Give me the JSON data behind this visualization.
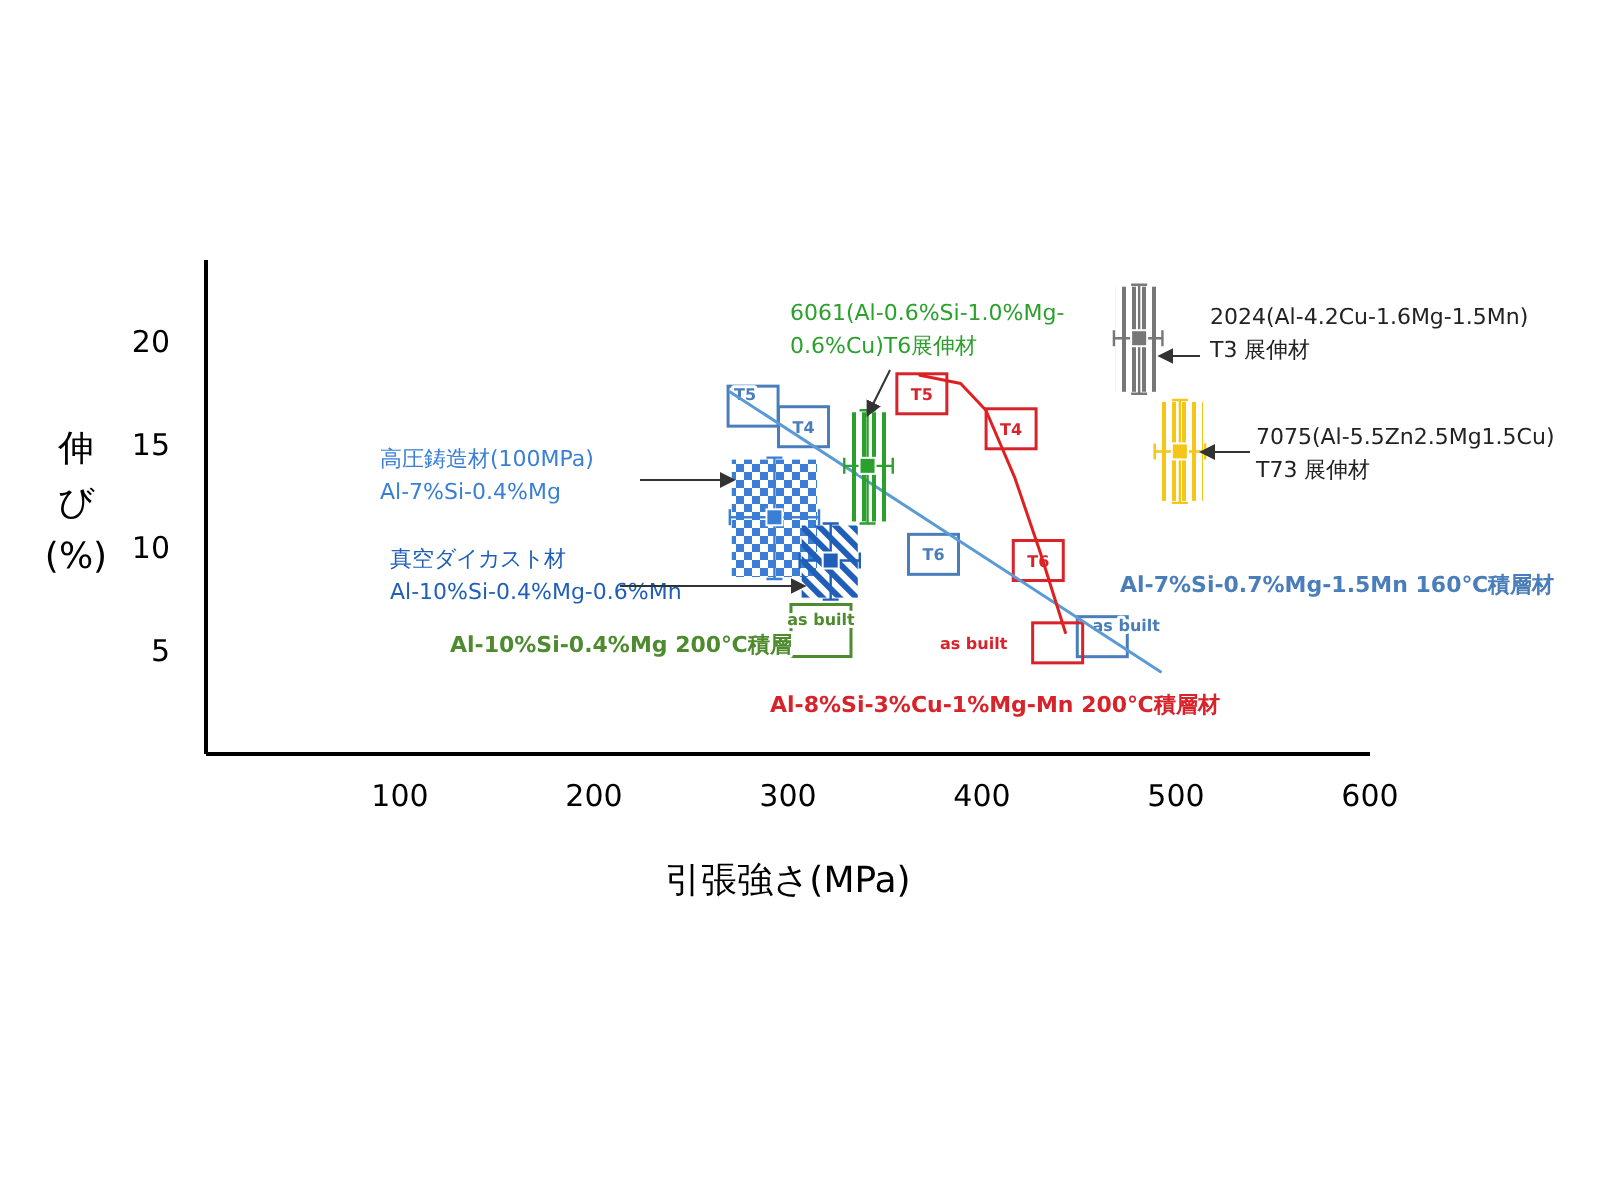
{
  "chart_data": {
    "type": "scatter",
    "xlabel": "引張強さ(MPa)",
    "ylabel": "伸び(%)",
    "xlim": [
      0,
      600
    ],
    "ylim": [
      0,
      24
    ],
    "xticks": [
      100,
      200,
      300,
      400,
      500,
      600
    ],
    "yticks": [
      5,
      10,
      15,
      20
    ],
    "grid": false,
    "legend": false,
    "marker": "square",
    "series": [
      {
        "name": "Al-7%Si-0.7%Mg-1.5Mn  160℃積層材",
        "color": "#4a7ebb",
        "x": [
          282,
          308,
          375,
          462
        ],
        "values": [
          16.9,
          15.9,
          9.7,
          5.7
        ],
        "value_labels": [
          "T5",
          "T4",
          "T6",
          "as built"
        ]
      },
      {
        "name": "Al-8%Si-3%Cu-1%Mg-Mn  200℃積層材",
        "color": "#d9232a",
        "x": [
          369,
          415,
          429,
          439
        ],
        "values": [
          17.5,
          15.8,
          9.4,
          5.4
        ],
        "value_labels": [
          "T5",
          "T4",
          "T6",
          "as built"
        ]
      },
      {
        "name": "Al-10%Si-0.4%Mg  200℃積層",
        "color": "#4e8a2e",
        "x": [
          317
        ],
        "values": [
          6.0
        ],
        "value_labels": [
          "as built"
        ]
      },
      {
        "color": "#5b9bd5",
        "type": "line",
        "marker": "none",
        "x": [
          270,
          492
        ],
        "values": [
          17.6,
          4.0
        ]
      },
      {
        "color": "#e02020",
        "type": "line",
        "marker": "none",
        "x": [
          368,
          389,
          402,
          417,
          430,
          443
        ],
        "values": [
          18.4,
          18.0,
          16.7,
          13.4,
          9.8,
          5.9
        ]
      },
      {
        "name": "高圧鋳造材(100MPa)\nAl-7%Si-0.4%Mg",
        "color": "#3a7fd5",
        "x": [
          293
        ],
        "values": [
          11.5
        ],
        "xerrors": [
          [
            270,
            316
          ]
        ],
        "errors": [
          [
            8.5,
            14.4
          ]
        ]
      },
      {
        "name": "真空ダイカスト材\nAl-10%Si-0.4%Mg-0.6%Mn",
        "color": "#1f5fb8",
        "x": [
          322
        ],
        "values": [
          9.4
        ],
        "xerrors": [
          [
            306,
            337
          ]
        ],
        "errors": [
          [
            7.5,
            11.2
          ]
        ]
      },
      {
        "name": "6061(Al-0.6%Si-1.0%Mg-\n0.6%Cu)T6展伸材",
        "color": "#2ca02c",
        "x": [
          341
        ],
        "values": [
          14.0
        ],
        "xerrors": [
          [
            329,
            354
          ]
        ],
        "errors": [
          [
            11.2,
            16.7
          ]
        ]
      },
      {
        "name": "2024(Al-4.2Cu-1.6Mg-1.5Mn)\nT3  展伸材",
        "color": "#777777",
        "x": [
          481
        ],
        "values": [
          20.2
        ],
        "xerrors": [
          [
            468,
            493
          ]
        ],
        "errors": [
          [
            17.5,
            22.8
          ]
        ]
      },
      {
        "name": "7075(Al-5.5Zn2.5Mg1.5Cu)\nT73  展伸材",
        "color": "#f5c518",
        "x": [
          502
        ],
        "values": [
          14.7
        ],
        "xerrors": [
          [
            489,
            515
          ]
        ],
        "errors": [
          [
            12.2,
            17.2
          ]
        ]
      }
    ]
  }
}
